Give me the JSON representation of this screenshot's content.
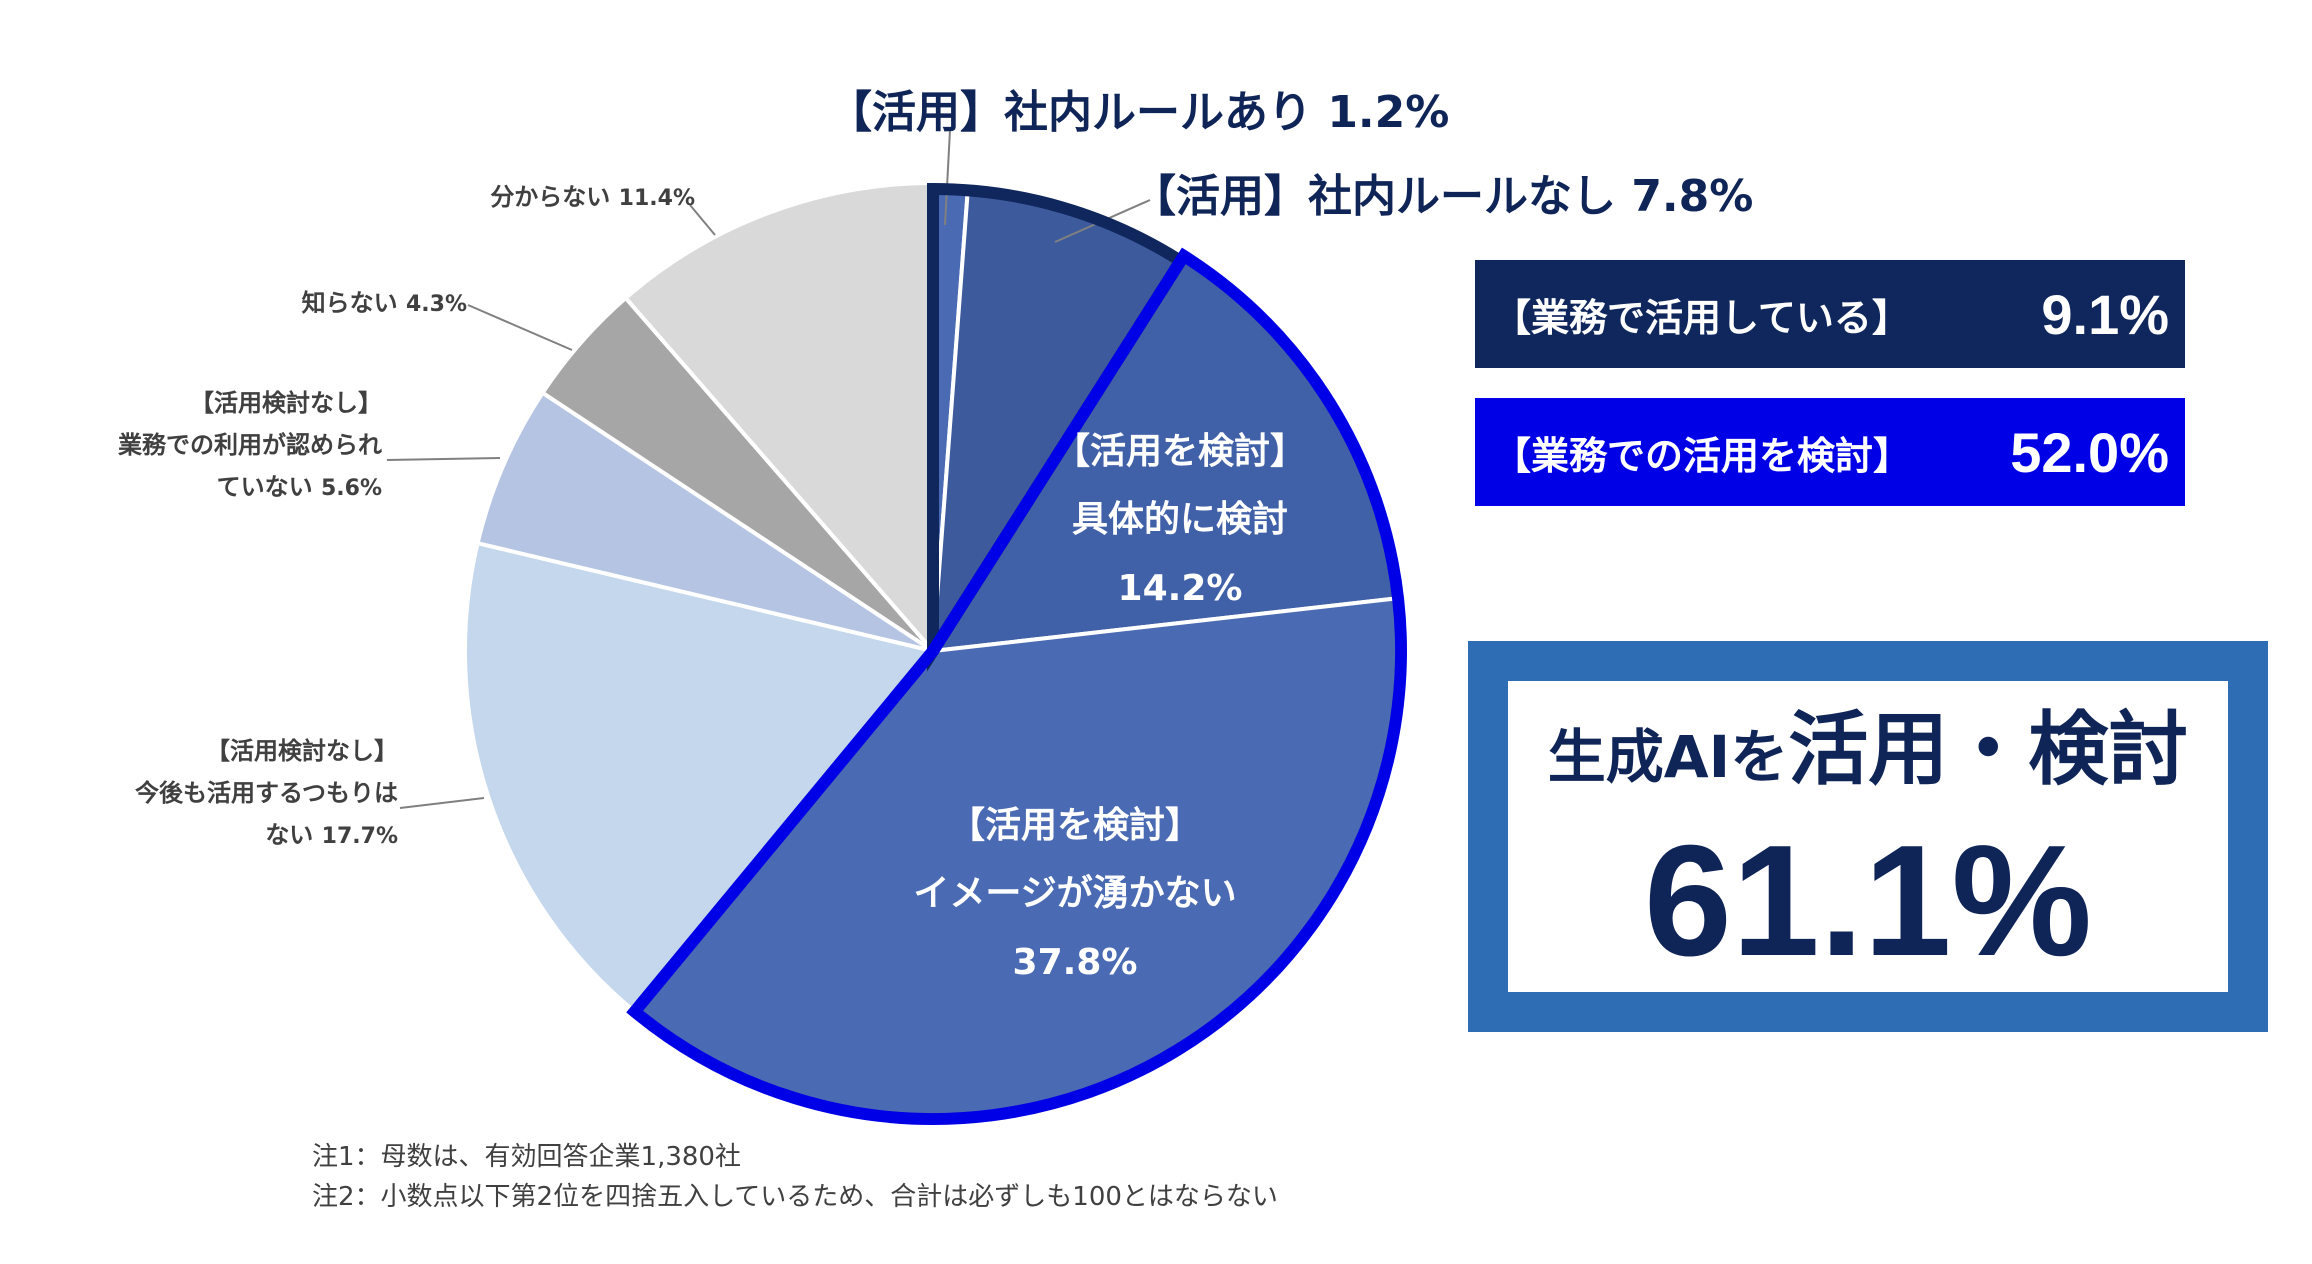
{
  "chart_data": {
    "type": "pie",
    "start": "12 o'clock, clockwise",
    "slices": [
      {
        "label": "【活用】社内ルールあり",
        "pct_text": "1.2%",
        "value": 1.2,
        "color": "#4a6ab3"
      },
      {
        "label": "【活用】社内ルールなし",
        "pct_text": "7.8%",
        "value": 7.8,
        "color": "#3d5a9d"
      },
      {
        "label": "【活用を検討】具体的に検討",
        "pct_text": "14.2%",
        "value": 14.2,
        "color": "#4060a8"
      },
      {
        "label": "【活用を検討】イメージが湧かない",
        "pct_text": "37.8%",
        "value": 37.8,
        "color": "#4a6ab3"
      },
      {
        "label": "【活用検討なし】今後も活用するつもりはない",
        "pct_text": "17.7%",
        "value": 17.7,
        "color": "#c4d7ec"
      },
      {
        "label": "【活用検討なし】業務での利用が認められていない",
        "pct_text": "5.6%",
        "value": 5.6,
        "color": "#b4c4e2"
      },
      {
        "label": "知らない",
        "pct_text": "4.3%",
        "value": 4.3,
        "color": "#a6a6a6"
      },
      {
        "label": "分からない",
        "pct_text": "11.4%",
        "value": 11.4,
        "color": "#d9d9d9"
      }
    ],
    "group_outlines": [
      {
        "name": "【業務で活用している】",
        "color": "#10275e"
      },
      {
        "name": "【業務での活用を検討】",
        "color": "#0000e6"
      }
    ]
  },
  "labels": {
    "rule_yes": {
      "text": "【活用】社内ルールあり 1.2%"
    },
    "rule_no": {
      "text": "【活用】社内ルールなし 7.8%"
    },
    "specific": {
      "l1": "【活用を検討】",
      "l2": "具体的に検討",
      "l3": "14.2%"
    },
    "no_image": {
      "l1": "【活用を検討】",
      "l2": "イメージが湧かない",
      "l3": "37.8%"
    },
    "no_intent": {
      "l1": "【活用検討なし】",
      "l2": "今後も活用するつもりは",
      "l3a": "ない ",
      "l3b": "17.7%"
    },
    "not_allowed": {
      "l1": "【活用検討なし】",
      "l2": "業務での利用が認められ",
      "l3a": "ていない ",
      "l3b": "5.6%"
    },
    "unknown": {
      "a": "知らない ",
      "b": "4.3%"
    },
    "dont_know": {
      "a": "分からない ",
      "b": "11.4%"
    }
  },
  "boxes": {
    "using": {
      "label": "【業務で活用している】",
      "value": "9.1%",
      "color": "#10275e"
    },
    "considering": {
      "label": "【業務での活用を検討】",
      "value": "52.0%",
      "color": "#0000e6"
    }
  },
  "summary": {
    "title_a": "生成AIを",
    "title_b": "活用・検討",
    "value": "61.1%",
    "frame_color": "#2e6db4"
  },
  "notes": {
    "n1": "注1：母数は、有効回答企業1,380社",
    "n2": "注2：小数点以下第2位を四捨五入しているため、合計は必ずしも100とはならない"
  }
}
